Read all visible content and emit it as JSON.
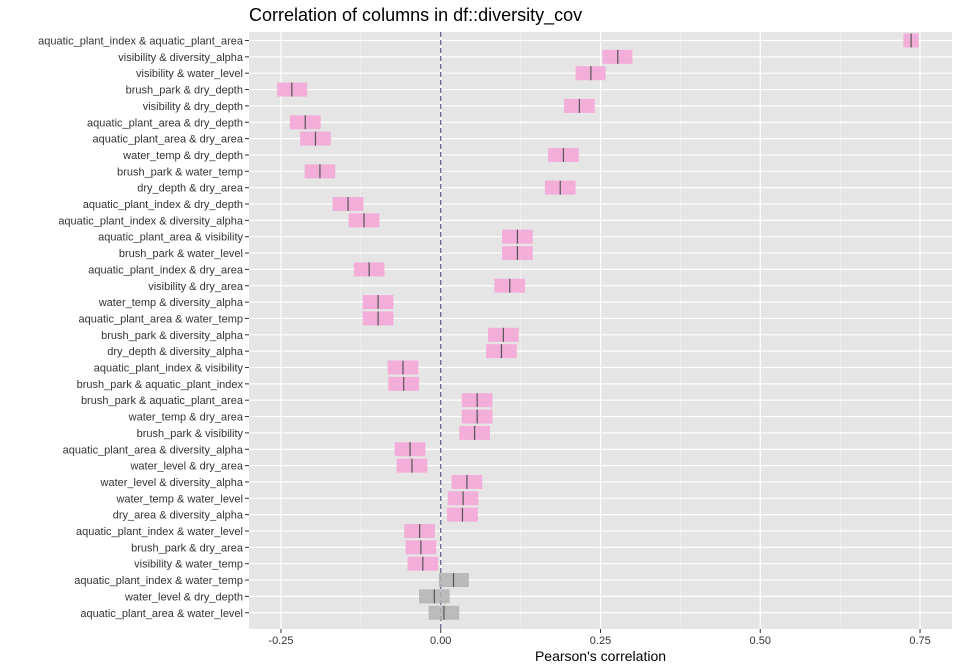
{
  "chart_data": {
    "type": "interval",
    "title": "Correlation of columns in df::diversity_cov",
    "xlabel": "Pearson's correlation",
    "ylabel": "",
    "xlim": [
      -0.3,
      0.8
    ],
    "x_ticks": [
      "-0.25",
      "0.00",
      "0.25",
      "0.50",
      "0.75"
    ],
    "x_tick_values": [
      -0.25,
      0,
      0.25,
      0.5,
      0.75
    ],
    "reference_line": 0,
    "colors": {
      "significant": "#f4a6d7",
      "not_significant": "#b3b3b3",
      "panel": "#e5e5e5",
      "grid": "#ffffff",
      "estimate": "#555555",
      "reference": "#555a80"
    },
    "rows": [
      {
        "label": "aquatic_plant_index & aquatic_plant_area",
        "estimate": 0.736,
        "low": 0.724,
        "high": 0.748,
        "significant": true
      },
      {
        "label": "visibility & diversity_alpha",
        "estimate": 0.277,
        "low": 0.253,
        "high": 0.3,
        "significant": true
      },
      {
        "label": "visibility & water_level",
        "estimate": 0.235,
        "low": 0.211,
        "high": 0.258,
        "significant": true
      },
      {
        "label": "brush_park & dry_depth",
        "estimate": -0.233,
        "low": -0.256,
        "high": -0.209,
        "significant": true
      },
      {
        "label": "visibility & dry_depth",
        "estimate": 0.217,
        "low": 0.193,
        "high": 0.241,
        "significant": true
      },
      {
        "label": "aquatic_plant_area & dry_depth",
        "estimate": -0.212,
        "low": -0.236,
        "high": -0.188,
        "significant": true
      },
      {
        "label": "aquatic_plant_area & dry_area",
        "estimate": -0.196,
        "low": -0.22,
        "high": -0.172,
        "significant": true
      },
      {
        "label": "water_temp & dry_depth",
        "estimate": 0.192,
        "low": 0.168,
        "high": 0.216,
        "significant": true
      },
      {
        "label": "brush_park & water_temp",
        "estimate": -0.189,
        "low": -0.213,
        "high": -0.165,
        "significant": true
      },
      {
        "label": "dry_depth & dry_area",
        "estimate": 0.187,
        "low": 0.163,
        "high": 0.211,
        "significant": true
      },
      {
        "label": "aquatic_plant_index & dry_depth",
        "estimate": -0.145,
        "low": -0.169,
        "high": -0.121,
        "significant": true
      },
      {
        "label": "aquatic_plant_index & diversity_alpha",
        "estimate": -0.12,
        "low": -0.144,
        "high": -0.096,
        "significant": true
      },
      {
        "label": "aquatic_plant_area & visibility",
        "estimate": 0.12,
        "low": 0.096,
        "high": 0.144,
        "significant": true
      },
      {
        "label": "brush_park & water_level",
        "estimate": 0.12,
        "low": 0.096,
        "high": 0.144,
        "significant": true
      },
      {
        "label": "aquatic_plant_index & dry_area",
        "estimate": -0.112,
        "low": -0.136,
        "high": -0.088,
        "significant": true
      },
      {
        "label": "visibility & dry_area",
        "estimate": 0.108,
        "low": 0.084,
        "high": 0.132,
        "significant": true
      },
      {
        "label": "water_temp & diversity_alpha",
        "estimate": -0.098,
        "low": -0.122,
        "high": -0.074,
        "significant": true
      },
      {
        "label": "aquatic_plant_area & water_temp",
        "estimate": -0.098,
        "low": -0.122,
        "high": -0.074,
        "significant": true
      },
      {
        "label": "brush_park & diversity_alpha",
        "estimate": 0.098,
        "low": 0.074,
        "high": 0.122,
        "significant": true
      },
      {
        "label": "dry_depth & diversity_alpha",
        "estimate": 0.095,
        "low": 0.071,
        "high": 0.119,
        "significant": true
      },
      {
        "label": "aquatic_plant_index & visibility",
        "estimate": -0.059,
        "low": -0.083,
        "high": -0.035,
        "significant": true
      },
      {
        "label": "brush_park & aquatic_plant_index",
        "estimate": -0.058,
        "low": -0.082,
        "high": -0.034,
        "significant": true
      },
      {
        "label": "brush_park & aquatic_plant_area",
        "estimate": 0.057,
        "low": 0.033,
        "high": 0.081,
        "significant": true
      },
      {
        "label": "water_temp & dry_area",
        "estimate": 0.057,
        "low": 0.033,
        "high": 0.081,
        "significant": true
      },
      {
        "label": "brush_park & visibility",
        "estimate": 0.053,
        "low": 0.029,
        "high": 0.077,
        "significant": true
      },
      {
        "label": "aquatic_plant_area & diversity_alpha",
        "estimate": -0.048,
        "low": -0.072,
        "high": -0.024,
        "significant": true
      },
      {
        "label": "water_level & dry_area",
        "estimate": -0.045,
        "low": -0.069,
        "high": -0.021,
        "significant": true
      },
      {
        "label": "water_level & diversity_alpha",
        "estimate": 0.041,
        "low": 0.017,
        "high": 0.065,
        "significant": true
      },
      {
        "label": "water_temp & water_level",
        "estimate": 0.035,
        "low": 0.011,
        "high": 0.059,
        "significant": true
      },
      {
        "label": "dry_area & diversity_alpha",
        "estimate": 0.034,
        "low": 0.01,
        "high": 0.058,
        "significant": true
      },
      {
        "label": "aquatic_plant_index & water_level",
        "estimate": -0.033,
        "low": -0.057,
        "high": -0.009,
        "significant": true
      },
      {
        "label": "brush_park & dry_area",
        "estimate": -0.031,
        "low": -0.055,
        "high": -0.007,
        "significant": true
      },
      {
        "label": "visibility & water_temp",
        "estimate": -0.028,
        "low": -0.052,
        "high": -0.004,
        "significant": true
      },
      {
        "label": "aquatic_plant_index & water_temp",
        "estimate": 0.02,
        "low": -0.003,
        "high": 0.044,
        "significant": false
      },
      {
        "label": "water_level & dry_depth",
        "estimate": -0.01,
        "low": -0.034,
        "high": 0.014,
        "significant": false
      },
      {
        "label": "aquatic_plant_area & water_level",
        "estimate": 0.005,
        "low": -0.019,
        "high": 0.029,
        "significant": false
      }
    ]
  }
}
